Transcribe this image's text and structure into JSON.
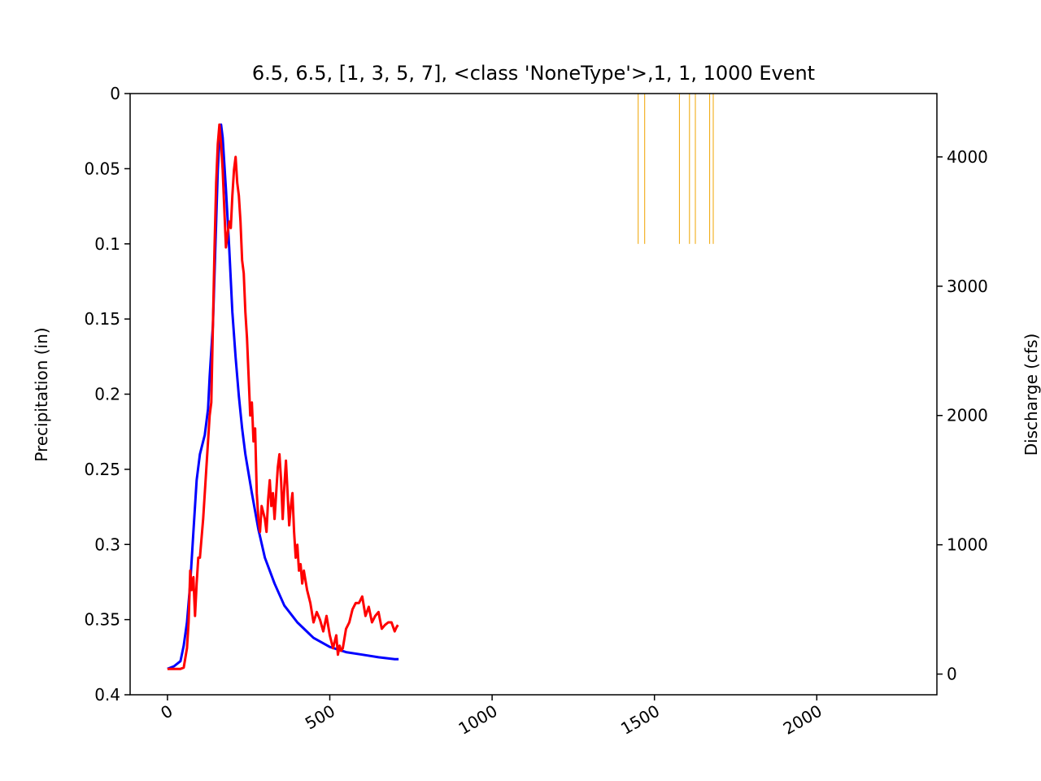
{
  "chart_data": {
    "type": "line",
    "title": "6.5, 6.5, [1, 3, 5, 7], <class 'NoneType'>,1, 1, 1000 Event",
    "xlabel": "",
    "ylabel_left": "Precipitation (in)",
    "ylabel_right": "Discharge (cfs)",
    "xlim": [
      -115,
      2370
    ],
    "ylim_left": [
      0.4,
      0
    ],
    "ylim_left_inverted": true,
    "ylim_right": [
      -160,
      4490
    ],
    "x_ticks": [
      0,
      500,
      1000,
      1500,
      2000
    ],
    "x_tick_labels": [
      "0",
      "500",
      "1000",
      "1500",
      "2000"
    ],
    "x_tick_rotation": 30,
    "y_left_ticks": [
      0,
      0.05,
      0.1,
      0.15,
      0.2,
      0.25,
      0.3,
      0.35,
      0.4
    ],
    "y_left_tick_labels": [
      "0",
      "0.05",
      "0.1",
      "0.15",
      "0.2",
      "0.25",
      "0.3",
      "0.35",
      "0.4"
    ],
    "y_right_ticks": [
      0,
      1000,
      2000,
      3000,
      4000
    ],
    "y_right_tick_labels": [
      "0",
      "1000",
      "2000",
      "3000",
      "4000"
    ],
    "grid": false,
    "colors": {
      "blue_series": "#0000ff",
      "red_series": "#ff0000",
      "precip_bars": "#f0a500"
    },
    "precip_bars": [
      {
        "x": 1450,
        "value": 0.1
      },
      {
        "x": 1470,
        "value": 0.1
      },
      {
        "x": 1577,
        "value": 0.1
      },
      {
        "x": 1608,
        "value": 0.1
      },
      {
        "x": 1626,
        "value": 0.1
      },
      {
        "x": 1670,
        "value": 0.1
      },
      {
        "x": 1681,
        "value": 0.1
      }
    ],
    "series": [
      {
        "color": "#0000ff",
        "axis": "right",
        "x": [
          0,
          20,
          40,
          50,
          60,
          70,
          80,
          90,
          100,
          110,
          115,
          125,
          130,
          140,
          145,
          150,
          155,
          160,
          165,
          170,
          180,
          190,
          200,
          210,
          220,
          230,
          240,
          250,
          260,
          280,
          300,
          330,
          360,
          400,
          450,
          500,
          550,
          600,
          650,
          700,
          712
        ],
        "y": [
          40,
          60,
          100,
          220,
          400,
          700,
          1100,
          1500,
          1700,
          1800,
          1850,
          2050,
          2300,
          2700,
          3100,
          3500,
          3900,
          4150,
          4250,
          4150,
          3750,
          3300,
          2800,
          2450,
          2150,
          1900,
          1700,
          1550,
          1400,
          1120,
          900,
          700,
          530,
          400,
          280,
          210,
          170,
          150,
          130,
          115,
          115
        ]
      },
      {
        "color": "#ff0000",
        "axis": "right",
        "x": [
          0,
          20,
          40,
          50,
          60,
          65,
          70,
          75,
          80,
          85,
          90,
          95,
          100,
          110,
          120,
          130,
          135,
          140,
          145,
          150,
          155,
          160,
          165,
          170,
          175,
          180,
          185,
          190,
          195,
          200,
          205,
          210,
          215,
          220,
          225,
          230,
          235,
          240,
          245,
          250,
          255,
          260,
          265,
          270,
          275,
          280,
          285,
          290,
          295,
          300,
          305,
          310,
          315,
          320,
          325,
          330,
          335,
          340,
          345,
          350,
          355,
          360,
          365,
          370,
          375,
          380,
          385,
          390,
          395,
          400,
          405,
          410,
          415,
          420,
          430,
          440,
          450,
          460,
          470,
          480,
          490,
          500,
          505,
          510,
          515,
          520,
          525,
          530,
          535,
          540,
          550,
          560,
          570,
          580,
          590,
          600,
          610,
          620,
          630,
          640,
          650,
          660,
          670,
          680,
          690,
          700,
          705,
          710
        ],
        "y": [
          40,
          40,
          40,
          50,
          200,
          400,
          800,
          650,
          750,
          450,
          700,
          900,
          900,
          1200,
          1600,
          2000,
          2100,
          2700,
          3300,
          3800,
          4100,
          4250,
          4100,
          3900,
          3600,
          3300,
          3400,
          3500,
          3450,
          3700,
          3900,
          4000,
          3800,
          3700,
          3500,
          3200,
          3100,
          2800,
          2600,
          2300,
          2000,
          2100,
          1800,
          1900,
          1400,
          1200,
          1100,
          1300,
          1250,
          1200,
          1100,
          1350,
          1500,
          1300,
          1400,
          1200,
          1400,
          1600,
          1700,
          1500,
          1200,
          1450,
          1650,
          1400,
          1150,
          1300,
          1400,
          1100,
          900,
          1000,
          800,
          850,
          700,
          800,
          650,
          550,
          400,
          480,
          420,
          330,
          450,
          300,
          250,
          200,
          250,
          300,
          150,
          220,
          180,
          200,
          350,
          400,
          500,
          550,
          550,
          600,
          450,
          520,
          400,
          450,
          480,
          350,
          380,
          400,
          400,
          330,
          360,
          380
        ]
      }
    ]
  }
}
